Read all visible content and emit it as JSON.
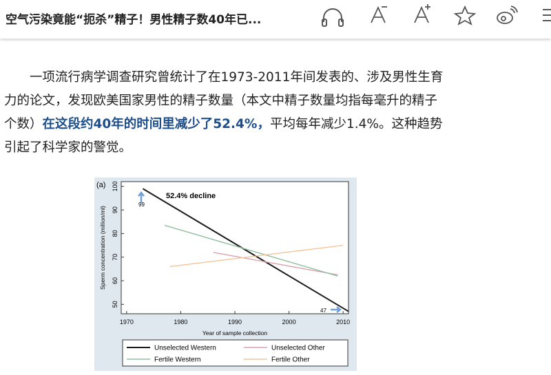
{
  "header": {
    "title": "空气污染竟能“扼杀”精子！男性精子数40年已..."
  },
  "article": {
    "text_1": "一项流行病学调查研究曾统计了在1973-2011年间发表的、涉及男性生育力的论文，发现欧美国家男性的精子数量（本文中精子数量均指每毫升的精子个数）",
    "text_2": "在这段约40年的时间里减少了52.4%，",
    "text_3": "平均每年减少1.4%。这种趋势引起了科学家的警觉。"
  },
  "chart_data": {
    "type": "line",
    "panel_label": "(a)",
    "annotation": "52.4% decline",
    "start_label": "99",
    "end_label": "47",
    "x_label": "Year of sample collection",
    "y_label": "Sperm concentration (million/ml)",
    "xlim": [
      1969,
      2011
    ],
    "ylim": [
      46,
      102
    ],
    "xticks": [
      1970,
      1980,
      1990,
      2000,
      2010
    ],
    "yticks": [
      50,
      60,
      70,
      80,
      90,
      100
    ],
    "series": [
      {
        "name": "Unselected Western",
        "color": "#1a1a1a",
        "x": [
          1973,
          2011
        ],
        "values": [
          99,
          47
        ]
      },
      {
        "name": "Unselected Other",
        "color": "#d9a0ad",
        "x": [
          1986,
          2009
        ],
        "values": [
          72,
          62.5
        ]
      },
      {
        "name": "Fertile Western",
        "color": "#8fbf9f",
        "x": [
          1977,
          2009
        ],
        "values": [
          83.5,
          62
        ]
      },
      {
        "name": "Fertile Other",
        "color": "#f2c49b",
        "x": [
          1978,
          2010
        ],
        "values": [
          66,
          75
        ]
      }
    ]
  }
}
